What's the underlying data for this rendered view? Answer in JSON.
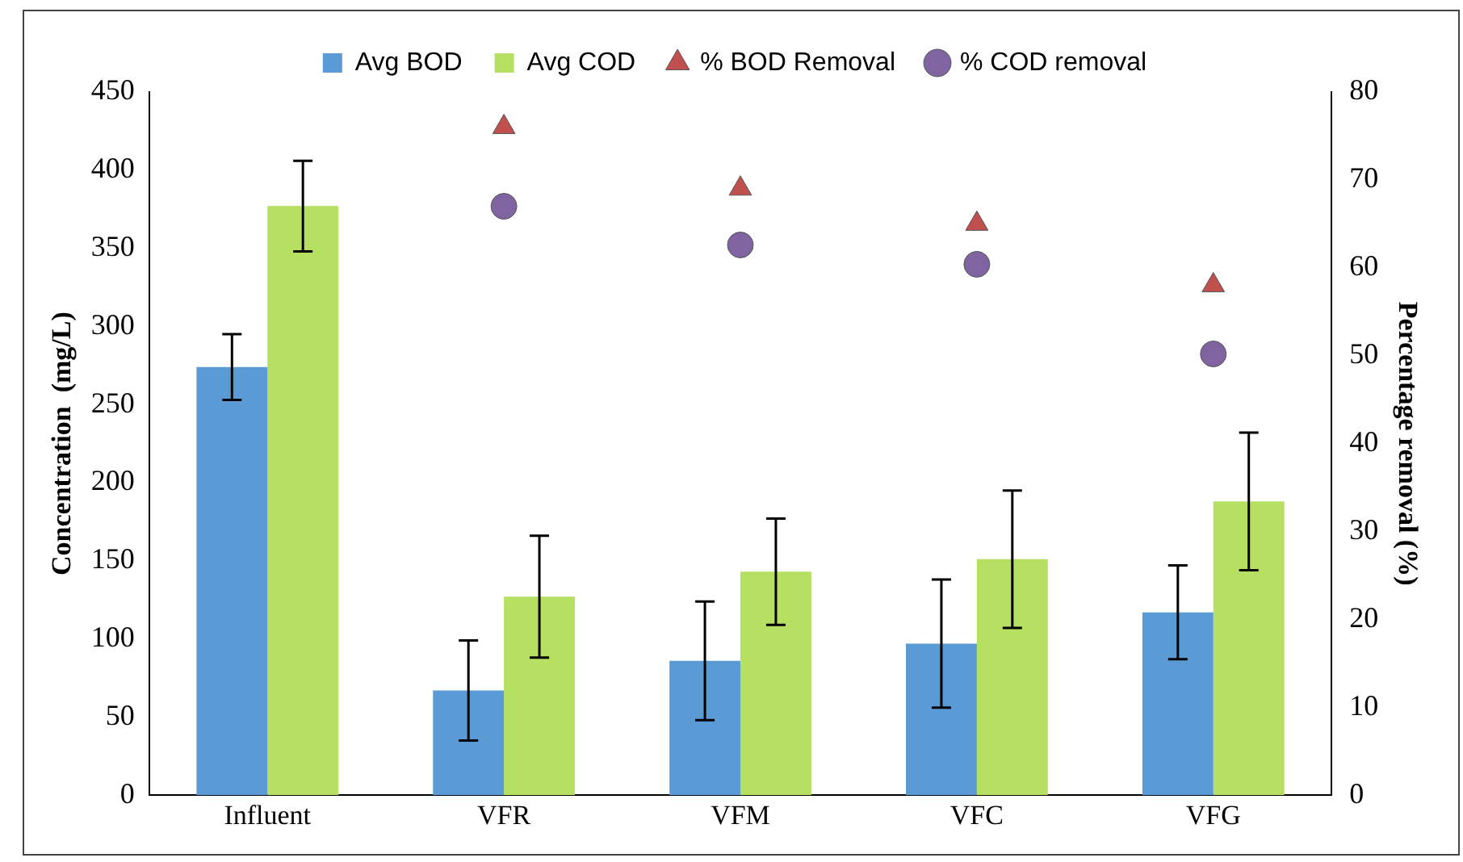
{
  "chart_data": {
    "type": "bar",
    "categories": [
      "Influent",
      "VFR",
      "VFM",
      "VFC",
      "VFG"
    ],
    "ylabel": "Concentration  (mg/L)",
    "y2label": "Percentage removal (%)",
    "ylim": [
      0,
      450
    ],
    "yticks": [
      0,
      50,
      100,
      150,
      200,
      250,
      300,
      350,
      400,
      450
    ],
    "y2lim": [
      0,
      80
    ],
    "y2ticks": [
      0,
      10,
      20,
      30,
      40,
      50,
      60,
      70,
      80
    ],
    "grid": false,
    "legend": "top",
    "series": [
      {
        "name": "Avg BOD",
        "color": "#5b9bd5",
        "values": [
          274,
          67,
          86,
          97,
          117
        ],
        "errors": [
          21,
          32,
          38,
          41,
          30
        ]
      },
      {
        "name": "Avg COD",
        "color": "#b5e061",
        "values": [
          377,
          127,
          143,
          151,
          188
        ],
        "errors": [
          29,
          39,
          34,
          44,
          44
        ]
      },
      {
        "name": "% BOD Removal",
        "type": "scatter",
        "axis": "y2",
        "marker": "triangle",
        "color": "#c0504d",
        "x": [
          "VFR",
          "VFM",
          "VFC",
          "VFG"
        ],
        "values": [
          76,
          69,
          65,
          58
        ]
      },
      {
        "name": "% COD removal",
        "type": "scatter",
        "axis": "y2",
        "marker": "circle",
        "color": "#8064a2",
        "x": [
          "VFR",
          "VFM",
          "VFC",
          "VFG"
        ],
        "values": [
          67,
          62.6,
          60.4,
          50.2
        ]
      }
    ]
  }
}
